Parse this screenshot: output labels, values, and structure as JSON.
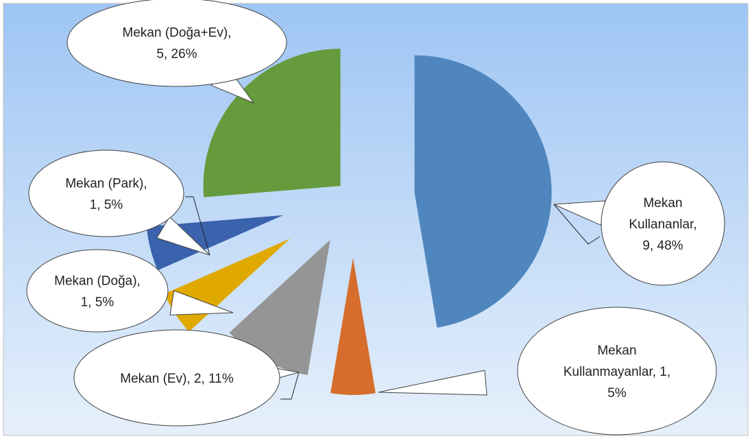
{
  "chart_data": {
    "type": "pie",
    "title": "",
    "exploded": true,
    "background_gradient": [
      "#9ec5f4",
      "#e6f0fb"
    ],
    "slices": [
      {
        "name": "Mekan Kullananlar",
        "value": 9,
        "percent": "48%",
        "color": "#4f86bd",
        "label_lines": [
          "Mekan",
          "Kullananlar,",
          "9, 48%"
        ]
      },
      {
        "name": "Mekan Kullanmayanlar",
        "value": 1,
        "percent": "5%",
        "color": "#d66d2c",
        "label_lines": [
          "Mekan",
          "Kullanmayanlar, 1,",
          "5%"
        ]
      },
      {
        "name": "Mekan (Ev)",
        "value": 2,
        "percent": "11%",
        "color": "#959595",
        "label_lines": [
          "Mekan (Ev), 2, 11%"
        ]
      },
      {
        "name": "Mekan (Doğa)",
        "value": 1,
        "percent": "5%",
        "color": "#e0a900",
        "label_lines": [
          "Mekan (Doğa),",
          "1, 5%"
        ]
      },
      {
        "name": "Mekan (Park)",
        "value": 1,
        "percent": "5%",
        "color": "#3a62ad",
        "label_lines": [
          "Mekan (Park),",
          "1, 5%"
        ]
      },
      {
        "name": "Mekan (Doğa+Ev)",
        "value": 5,
        "percent": "26%",
        "color": "#659b3c",
        "label_lines": [
          "Mekan (Doğa+Ev),",
          "5, 26%"
        ]
      }
    ]
  }
}
